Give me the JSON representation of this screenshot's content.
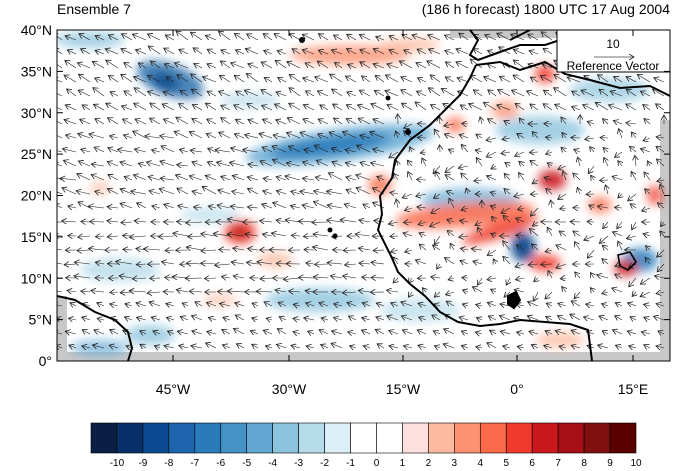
{
  "title_left": "Ensemble 7",
  "title_right": "(186 h forecast) 1800 UTC 17 Aug 2004",
  "lat_labels": [
    "40°N",
    "35°N",
    "30°N",
    "25°N",
    "20°N",
    "15°N",
    "10°N",
    "5°N",
    "0°"
  ],
  "lon_labels": [
    "45°W",
    "30°W",
    "15°W",
    "0°",
    "15°E"
  ],
  "reference_vector": {
    "magnitude": "10",
    "label": "Reference Vector"
  },
  "colorbar": {
    "labels": [
      "-10",
      "-9",
      "-8",
      "-7",
      "-6",
      "-5",
      "-4",
      "-3",
      "-2",
      "-1",
      "0",
      "1",
      "2",
      "3",
      "4",
      "5",
      "6",
      "7",
      "8",
      "9",
      "10"
    ],
    "colors": [
      "#0a1f44",
      "#08306b",
      "#0b4a91",
      "#1f65ad",
      "#2b7bba",
      "#4592c6",
      "#62a7d2",
      "#8dc4dd",
      "#b6dbea",
      "#dbeff8",
      "#ffffff",
      "#ffffff",
      "#fde0dd",
      "#fcbba1",
      "#fc9272",
      "#fb6a4a",
      "#ef3b2c",
      "#cb181d",
      "#a50f15",
      "#800f0f",
      "#5a0000"
    ]
  },
  "colors": {
    "blue_anomaly": "#4a8fc4",
    "red_anomaly": "#e8413c",
    "land_gray": "#c8c8c8",
    "coast": "#000000"
  }
}
